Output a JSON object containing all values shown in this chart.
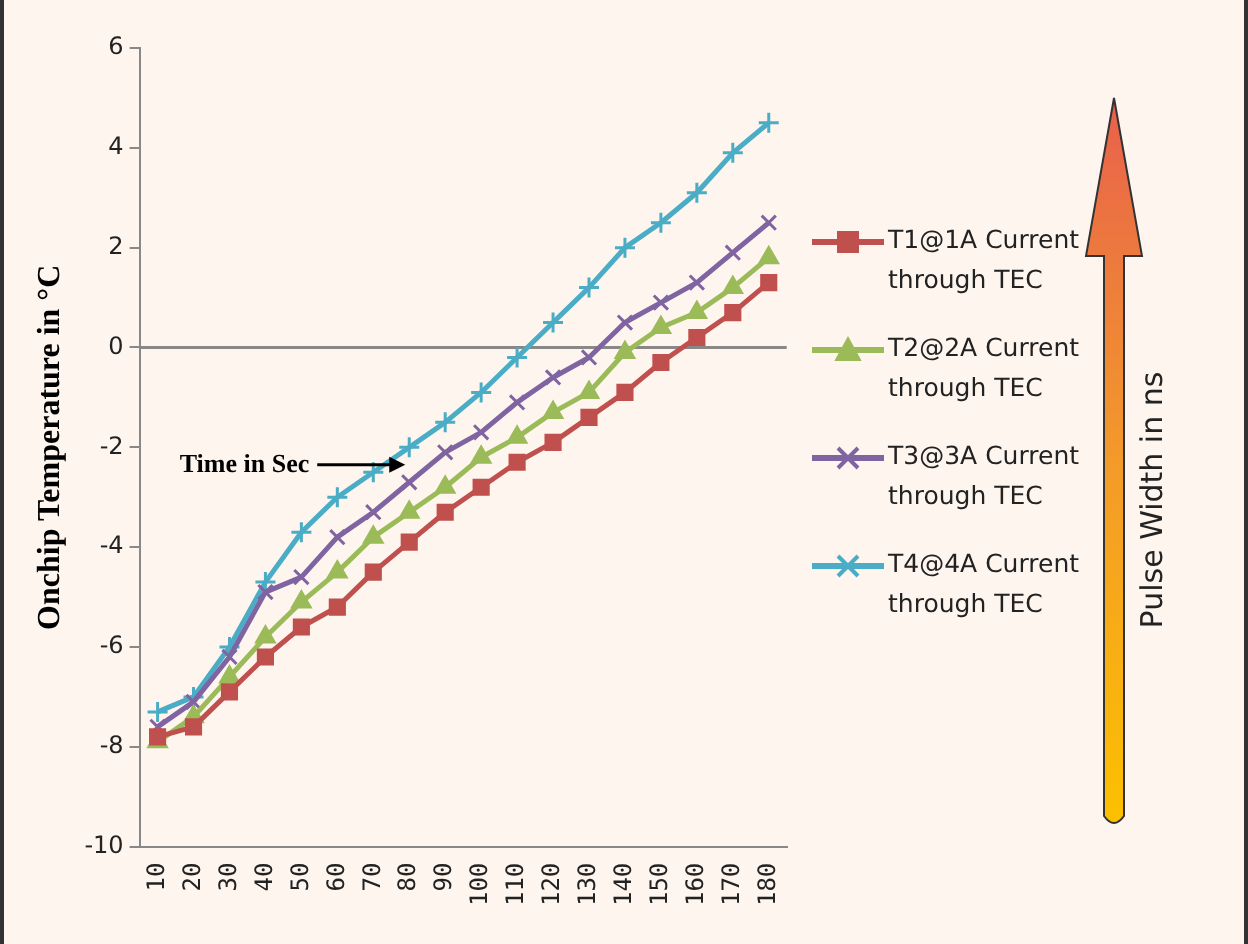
{
  "chart_data": {
    "type": "line",
    "ylabel": "Onchip Temperature in °C",
    "xlabel": "Time in Sec",
    "categories": [
      "10",
      "20",
      "30",
      "40",
      "50",
      "60",
      "70",
      "80",
      "90",
      "100",
      "110",
      "120",
      "130",
      "140",
      "150",
      "160",
      "170",
      "180"
    ],
    "series": [
      {
        "name": "T1@1A Current through TEC",
        "color": "#c0504d",
        "marker": "square",
        "values": [
          -7.8,
          -7.6,
          -6.9,
          -6.2,
          -5.6,
          -5.2,
          -4.5,
          -3.9,
          -3.3,
          -2.8,
          -2.3,
          -1.9,
          -1.4,
          -0.9,
          -0.3,
          0.2,
          0.7,
          1.3
        ]
      },
      {
        "name": "T2@2A Current through TEC",
        "color": "#9bbb59",
        "marker": "triangle",
        "values": [
          -7.9,
          -7.4,
          -6.6,
          -5.8,
          -5.1,
          -4.5,
          -3.8,
          -3.3,
          -2.8,
          -2.2,
          -1.8,
          -1.3,
          -0.9,
          -0.1,
          0.4,
          0.7,
          1.2,
          1.8
        ]
      },
      {
        "name": "T3@3A Current through TEC",
        "color": "#8064a2",
        "marker": "cross",
        "values": [
          -7.6,
          -7.1,
          -6.2,
          -4.9,
          -4.6,
          -3.8,
          -3.3,
          -2.7,
          -2.1,
          -1.7,
          -1.1,
          -0.6,
          -0.2,
          0.5,
          0.9,
          1.3,
          1.9,
          2.5
        ]
      },
      {
        "name": "T4@4A Current through TEC",
        "color": "#4bacc6",
        "marker": "cross",
        "values": [
          -7.3,
          -7.0,
          -6.0,
          -4.7,
          -3.7,
          -3.0,
          -2.5,
          -2.0,
          -1.5,
          -0.9,
          -0.2,
          0.5,
          1.2,
          2.0,
          2.5,
          3.1,
          3.9,
          4.5
        ]
      }
    ],
    "ylim": [
      -10,
      6
    ],
    "yticks": [
      -10,
      -8,
      -6,
      -4,
      -2,
      0,
      2,
      4,
      6
    ],
    "ref_lines": [
      {
        "axis": "y",
        "value": 0,
        "color": "#888888"
      }
    ],
    "legend": "right",
    "annotations": [
      "Pulse Width in ns"
    ]
  }
}
